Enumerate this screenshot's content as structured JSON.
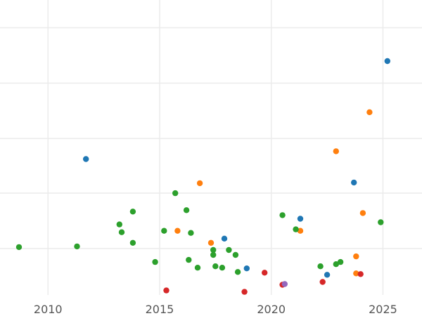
{
  "chart_data": {
    "type": "scatter",
    "title": "",
    "xlabel": "",
    "ylabel": "",
    "xlim": [
      2007.85,
      2026.75
    ],
    "ylim": [
      0,
      445
    ],
    "x_ticks": [
      2010,
      2015,
      2020,
      2025
    ],
    "x_tick_labels": [
      "2010",
      "2015",
      "2020",
      "2025"
    ],
    "y_gridlines": [
      39,
      117,
      195,
      272,
      350
    ],
    "grid": "horizontal-and-vertical",
    "legend": "none",
    "series": [
      {
        "color": "#1f77b4",
        "x": [
          2011.7,
          2017.9,
          2018.9,
          2021.3,
          2022.5,
          2023.7,
          2025.2
        ],
        "y": [
          224,
          336,
          378,
          308,
          387,
          257,
          86
        ]
      },
      {
        "color": "#ff7f0e",
        "x": [
          2015.8,
          2016.8,
          2017.3,
          2021.3,
          2022.9,
          2023.8,
          2023.8,
          2024.1,
          2024.4
        ],
        "y": [
          325,
          258,
          342,
          325,
          213,
          361,
          385,
          300,
          158
        ]
      },
      {
        "color": "#2ca02c",
        "x": [
          2008.7,
          2011.3,
          2013.2,
          2013.3,
          2013.8,
          2013.8,
          2014.8,
          2015.2,
          2015.7,
          2016.2,
          2016.3,
          2016.4,
          2016.7,
          2017.4,
          2017.4,
          2017.5,
          2017.8,
          2018.1,
          2018.4,
          2018.5,
          2020.5,
          2021.1,
          2022.2,
          2022.9,
          2023.1,
          2024.9
        ],
        "y": [
          348,
          347,
          316,
          327,
          298,
          342,
          369,
          325,
          272,
          296,
          366,
          328,
          377,
          352,
          359,
          375,
          377,
          352,
          359,
          383,
          303,
          323,
          375,
          372,
          369,
          313
        ]
      },
      {
        "color": "#d62728",
        "x": [
          2015.3,
          2018.8,
          2019.7,
          2020.5,
          2022.3,
          2024.0
        ],
        "y": [
          409,
          411,
          384,
          401,
          397,
          386
        ]
      },
      {
        "color": "#9467bd",
        "x": [
          2020.6
        ],
        "y": [
          400
        ]
      }
    ]
  }
}
